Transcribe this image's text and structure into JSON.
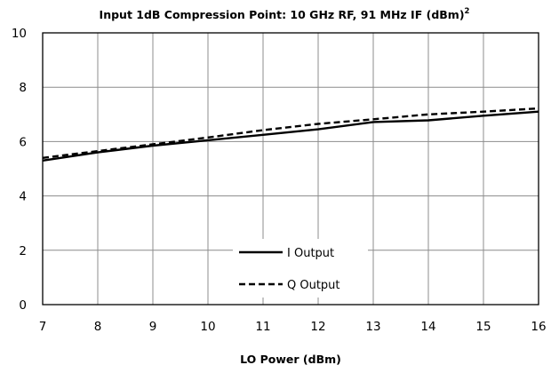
{
  "chart_data": {
    "type": "line",
    "title": "Input 1dB Compression Point: 10 GHz RF, 91 MHz IF (dBm)",
    "title_superscript": "2",
    "xlabel": "LO Power (dBm)",
    "ylabel": "",
    "xlim": [
      7,
      16
    ],
    "ylim": [
      0,
      10
    ],
    "x_ticks": [
      "7",
      "8",
      "9",
      "10",
      "11",
      "12",
      "13",
      "14",
      "15",
      "16"
    ],
    "y_ticks": [
      "0",
      "2",
      "4",
      "6",
      "8",
      "10"
    ],
    "grid": true,
    "legend_position": "bottom-center",
    "x": [
      7,
      8,
      9,
      10,
      11,
      12,
      13,
      14,
      15,
      16
    ],
    "series": [
      {
        "name": "I Output",
        "line_style": "solid",
        "color": "#000000",
        "values": [
          5.3,
          5.6,
          5.85,
          6.05,
          6.25,
          6.45,
          6.72,
          6.78,
          6.95,
          7.1
        ]
      },
      {
        "name": "Q Output",
        "line_style": "dashed",
        "color": "#000000",
        "values": [
          5.4,
          5.65,
          5.9,
          6.15,
          6.42,
          6.65,
          6.82,
          7.0,
          7.1,
          7.22
        ]
      }
    ]
  }
}
